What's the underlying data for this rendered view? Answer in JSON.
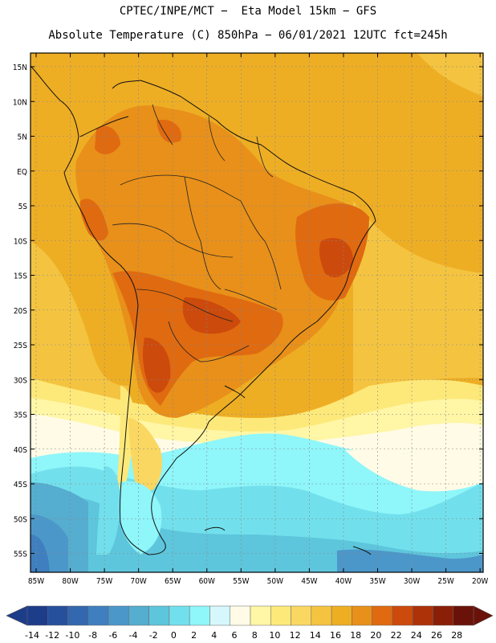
{
  "title_line1": "CPTEC/INPE/MCT −  Eta Model 15km − GFS",
  "title_line2": "Absolute Temperature (C) 850hPa − 06/01/2021 12UTC fct=245h",
  "lat_labels": [
    "15N",
    "10N",
    "5N",
    "EQ",
    "5S",
    "10S",
    "15S",
    "20S",
    "25S",
    "30S",
    "35S",
    "40S",
    "45S",
    "50S",
    "55S"
  ],
  "lon_labels": [
    "85W",
    "80W",
    "75W",
    "70W",
    "65W",
    "60W",
    "55W",
    "50W",
    "45W",
    "40W",
    "35W",
    "30W",
    "25W",
    "20W"
  ],
  "colorbar": {
    "ticks": [
      "-14",
      "-12",
      "-10",
      "-8",
      "-6",
      "-4",
      "-2",
      "0",
      "2",
      "4",
      "6",
      "8",
      "10",
      "12",
      "14",
      "16",
      "18",
      "20",
      "22",
      "24",
      "26",
      "28"
    ],
    "colors": [
      "#1d3c8a",
      "#26509c",
      "#3367ae",
      "#3f7fbf",
      "#4c97c9",
      "#55adcf",
      "#5ec6dc",
      "#72e0ec",
      "#8ff6fa",
      "#d6f7fb",
      "#fffbe6",
      "#fff6a6",
      "#fde97a",
      "#fad760",
      "#f4c441",
      "#eeae24",
      "#e8901a",
      "#e06a10",
      "#cc4a0c",
      "#ad3208",
      "#8a1f07",
      "#6a1209"
    ]
  }
}
